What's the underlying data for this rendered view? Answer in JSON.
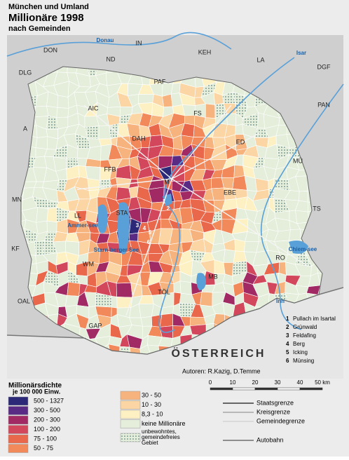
{
  "header": {
    "line1": "München und Umland",
    "line2": "Millionäre 1998",
    "line3": "nach Gemeinden"
  },
  "map": {
    "district_labels": [
      "DON",
      "ND",
      "IN",
      "KEH",
      "LA",
      "DLG",
      "PAF",
      "DGF",
      "AIC",
      "FS",
      "PAN",
      "A",
      "ED",
      "DAH",
      "MÜ",
      "FFB",
      "M",
      "EBE",
      "MN",
      "LL",
      "STA",
      "TS",
      "KF",
      "RO",
      "WM",
      "MB",
      "TÖL",
      "OAL",
      "GAP"
    ],
    "water_labels": [
      "Donau",
      "Isar",
      "Inn",
      "Ammer-see",
      "Starn-berger See",
      "Chiem-see"
    ],
    "numbers": [
      "1",
      "2",
      "3",
      "4",
      "5",
      "6"
    ],
    "country": "ÖSTERREICH"
  },
  "municipalities": [
    {
      "no": "1",
      "name": "Pullach im Isartal"
    },
    {
      "no": "2",
      "name": "Grünwald"
    },
    {
      "no": "3",
      "name": "Feldafing"
    },
    {
      "no": "4",
      "name": "Berg"
    },
    {
      "no": "5",
      "name": "Icking"
    },
    {
      "no": "6",
      "name": "Münsing"
    }
  ],
  "authors": "Autoren:  R.Kazig, D.Temme",
  "scale": {
    "ticks": [
      "0",
      "10",
      "20",
      "30",
      "40",
      "50 km"
    ]
  },
  "legend": {
    "title": "Millionärsdichte",
    "subtitle": "je 100 000 Einw.",
    "classes": [
      {
        "label": "500 - 1327",
        "color": "#2c2a78"
      },
      {
        "label": "300 - 500",
        "color": "#5a2b85"
      },
      {
        "label": "200 - 300",
        "color": "#a22a64"
      },
      {
        "label": "100 - 200",
        "color": "#d2475b"
      },
      {
        "label": "75 - 100",
        "color": "#e9674b"
      },
      {
        "label": "50 - 75",
        "color": "#f1895a"
      },
      {
        "label": "30 - 50",
        "color": "#f7b37d"
      },
      {
        "label": "10 - 30",
        "color": "#fbd5a4"
      },
      {
        "label": "8,3 - 10",
        "color": "#fdf1c4"
      },
      {
        "label": "keine Millionäre",
        "color": "#e4eedb"
      }
    ],
    "uninhabited": "unbewohntes, gemeindefreies Gebiet",
    "lines": [
      "Staatsgrenze",
      "Kreisgrenze",
      "Gemeindegrenze",
      "Autobahn"
    ]
  }
}
